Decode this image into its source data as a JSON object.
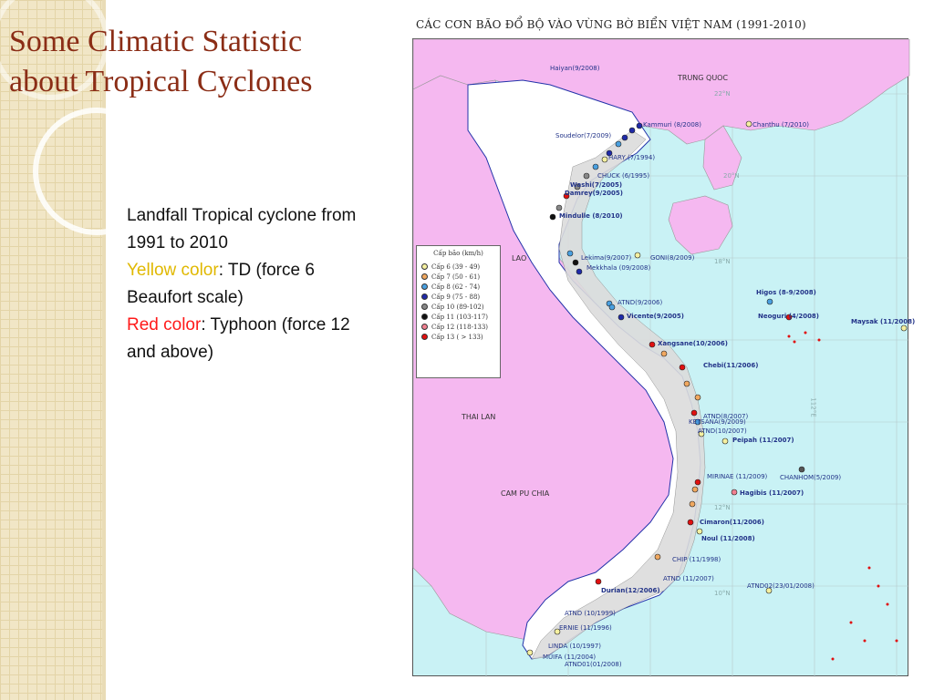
{
  "slide": {
    "title_line1": "Some Climatic Statistic",
    "title_line2": "about Tropical Cyclones",
    "text_intro": "Landfall Tropical cyclone from 1991 to 2010",
    "yellow_label": "Yellow color",
    "yellow_desc": ": TD (force 6 Beaufort scale)",
    "red_label": "Red color",
    "red_desc": ": Typhoon (force 12 and above)"
  },
  "map": {
    "title": "CÁC CƠN BÃO ĐỔ BỘ VÀO VÙNG BỜ BIỂN VIỆT NAM (1991-2010)",
    "countries": {
      "china": "TRUNG QUOC",
      "laos": "LAO",
      "thailand": "THAI LAN",
      "cambodia": "CAM PU CHIA"
    },
    "coords": {
      "lat22": "22°N",
      "lat20": "20°N",
      "lat18": "18°N",
      "lat12": "12°N",
      "lat10": "10°N",
      "lon112": "112°E"
    },
    "legend": {
      "title": "Cấp bão (km/h)",
      "items": [
        {
          "label": "Cấp 6 (39 - 49)",
          "color": "#f5f0a0"
        },
        {
          "label": "Cấp 7 (50 - 61)",
          "color": "#f0a860"
        },
        {
          "label": "Cấp 8 (62 - 74)",
          "color": "#4aa0e0"
        },
        {
          "label": "Cấp 9 (75 - 88)",
          "color": "#1f2aa8"
        },
        {
          "label": "Cấp 10 (89-102)",
          "color": "#888888"
        },
        {
          "label": "Cấp 11 (103-117)",
          "color": "#111111"
        },
        {
          "label": "Cấp 12 (118-133)",
          "color": "#f08090"
        },
        {
          "label": "Cấp 13 ( > 133)",
          "color": "#e01010"
        }
      ]
    },
    "storms": [
      {
        "label": "Haiyan(9/2008)",
        "cls": "lbl-storm"
      },
      {
        "label": "Soudelor(7/2009)",
        "cls": "lbl-storm"
      },
      {
        "label": "Kammuri (8/2008)",
        "cls": "lbl-storm"
      },
      {
        "label": "Chanthu (7/2010)",
        "cls": "lbl-storm"
      },
      {
        "label": "HARY (7/1994)",
        "cls": "lbl-storm"
      },
      {
        "label": "CHUCK (6/1995)",
        "cls": "lbl-storm"
      },
      {
        "label": "Washi(7/2005)",
        "cls": "lbl-storm-big"
      },
      {
        "label": "Damrey(9/2005)",
        "cls": "lbl-storm-big"
      },
      {
        "label": "Mindulle (8/2010)",
        "cls": "lbl-storm-big"
      },
      {
        "label": "Lekima(9/2007)",
        "cls": "lbl-storm"
      },
      {
        "label": "Mekkhala (09/2008)",
        "cls": "lbl-storm"
      },
      {
        "label": "GONI(8/2009)",
        "cls": "lbl-storm"
      },
      {
        "label": "ATND(9/2006)",
        "cls": "lbl-storm"
      },
      {
        "label": "Vicente(9/2005)",
        "cls": "lbl-storm-big"
      },
      {
        "label": "Higos (8-9/2008)",
        "cls": "lbl-storm-big"
      },
      {
        "label": "Neoguri (4/2008)",
        "cls": "lbl-storm-big"
      },
      {
        "label": "Maysak (11/2008)",
        "cls": "lbl-storm-big"
      },
      {
        "label": "Xangsane(10/2006)",
        "cls": "lbl-storm-big"
      },
      {
        "label": "Chebi(11/2006)",
        "cls": "lbl-storm-big"
      },
      {
        "label": "KETSANA(9/2009)",
        "cls": "lbl-storm"
      },
      {
        "label": "ATND(8/2007)",
        "cls": "lbl-storm"
      },
      {
        "label": "ATND(10/2007)",
        "cls": "lbl-storm"
      },
      {
        "label": "Peipah (11/2007)",
        "cls": "lbl-storm-big"
      },
      {
        "label": "CHANHOM(5/2009)",
        "cls": "lbl-storm"
      },
      {
        "label": "MIRINAE (11/2009)",
        "cls": "lbl-storm"
      },
      {
        "label": "Hagibis (11/2007)",
        "cls": "lbl-storm-big"
      },
      {
        "label": "Cimaron(11/2006)",
        "cls": "lbl-storm-big"
      },
      {
        "label": "Noul (11/2008)",
        "cls": "lbl-storm-big"
      },
      {
        "label": "CHIP (11/1998)",
        "cls": "lbl-storm"
      },
      {
        "label": "ATND (11/2007)",
        "cls": "lbl-storm"
      },
      {
        "label": "ATND02(23/01/2008)",
        "cls": "lbl-storm"
      },
      {
        "label": "Durian(12/2006)",
        "cls": "lbl-storm-big"
      },
      {
        "label": "ATND (10/1999)",
        "cls": "lbl-storm"
      },
      {
        "label": "ERNIE (11/1996)",
        "cls": "lbl-storm"
      },
      {
        "label": "LINDA (10/1997)",
        "cls": "lbl-storm"
      },
      {
        "label": "MUIFA (11/2004)",
        "cls": "lbl-storm"
      },
      {
        "label": "ATND01(01/2008)",
        "cls": "lbl-storm"
      }
    ]
  }
}
